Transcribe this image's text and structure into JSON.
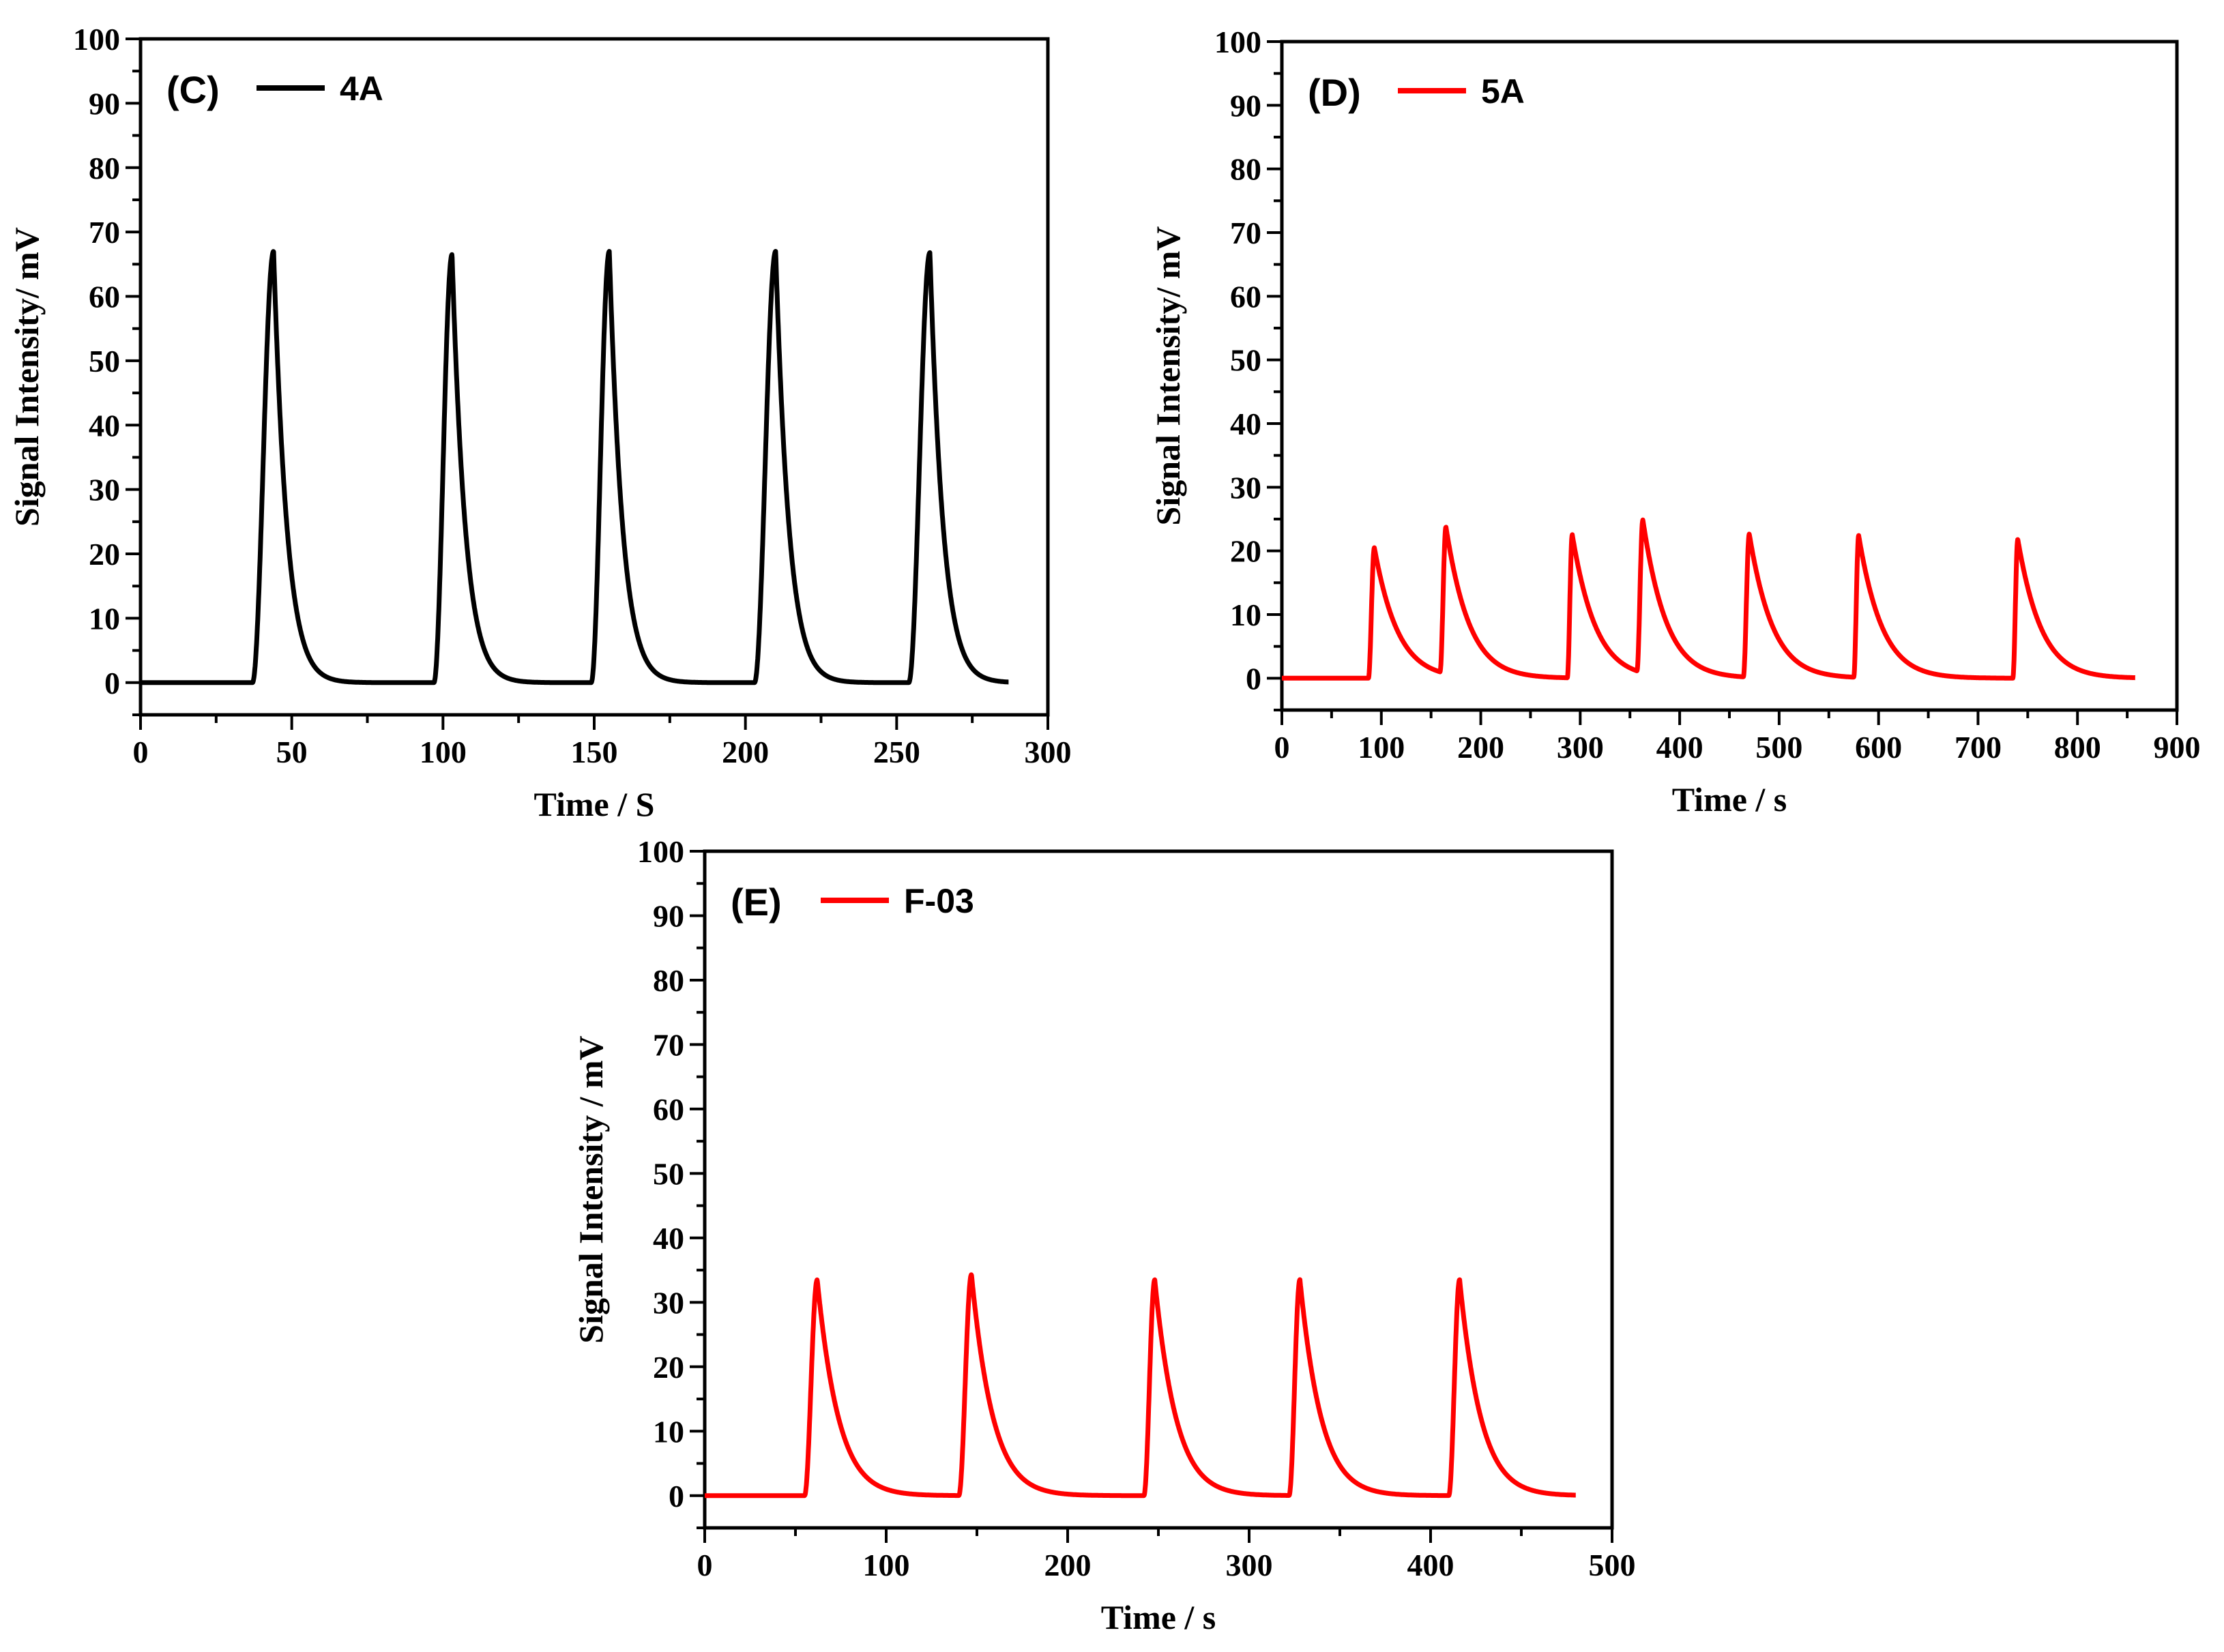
{
  "figure": {
    "panels": [
      "C",
      "D",
      "E"
    ]
  },
  "chart_data": [
    {
      "id": "C",
      "type": "line",
      "panel_label": "(C)",
      "legend": [
        {
          "name": "4A",
          "color": "#000000"
        }
      ],
      "xlabel": "Time / S",
      "ylabel": "Signal Intensity/ mV",
      "xlim": [
        0,
        300
      ],
      "ylim": [
        -5,
        100
      ],
      "xticks": [
        "0",
        "50",
        "100",
        "150",
        "200",
        "250",
        "300"
      ],
      "yticks": [
        "0",
        "10",
        "20",
        "30",
        "40",
        "50",
        "60",
        "70",
        "80",
        "90",
        "100"
      ],
      "series": [
        {
          "name": "4A",
          "color": "#000000",
          "baseline": 0,
          "x_end": 287,
          "peaks": [
            {
              "x": 44,
              "height": 67,
              "start": 37
            },
            {
              "x": 103,
              "height": 66.5,
              "start": 97
            },
            {
              "x": 155,
              "height": 67,
              "start": 149
            },
            {
              "x": 210,
              "height": 67,
              "start": 203
            },
            {
              "x": 261,
              "height": 66.8,
              "start": 254
            }
          ],
          "tau": 3.4
        }
      ]
    },
    {
      "id": "D",
      "type": "line",
      "panel_label": "(D)",
      "legend": [
        {
          "name": "5A",
          "color": "#ff0000"
        }
      ],
      "xlabel": "Time / s",
      "ylabel": "Signal Intensity/ mV",
      "xlim": [
        0,
        900
      ],
      "ylim": [
        -5,
        100
      ],
      "xticks": [
        "0",
        "100",
        "200",
        "300",
        "400",
        "500",
        "600",
        "700",
        "800",
        "900"
      ],
      "yticks": [
        "0",
        "10",
        "20",
        "30",
        "40",
        "50",
        "60",
        "70",
        "80",
        "90",
        "100"
      ],
      "series": [
        {
          "name": "5A",
          "color": "#ff0000",
          "baseline": 0,
          "x_end": 858,
          "peaks": [
            {
              "x": 93,
              "height": 20.5,
              "start": 87
            },
            {
              "x": 165,
              "height": 23,
              "start": 159
            },
            {
              "x": 292,
              "height": 22.5,
              "start": 287
            },
            {
              "x": 363,
              "height": 24,
              "start": 357
            },
            {
              "x": 470,
              "height": 22.5,
              "start": 464
            },
            {
              "x": 580,
              "height": 22.3,
              "start": 575
            },
            {
              "x": 740,
              "height": 21.8,
              "start": 735
            }
          ],
          "tau": 18
        }
      ]
    },
    {
      "id": "E",
      "type": "line",
      "panel_label": "(E)",
      "legend": [
        {
          "name": "F-03",
          "color": "#ff0000"
        }
      ],
      "xlabel": "Time / s",
      "ylabel": "Signal Intensity / mV",
      "xlim": [
        0,
        500
      ],
      "ylim": [
        -5,
        100
      ],
      "xticks": [
        "0",
        "100",
        "200",
        "300",
        "400",
        "500"
      ],
      "yticks": [
        "0",
        "10",
        "20",
        "30",
        "40",
        "50",
        "60",
        "70",
        "80",
        "90",
        "100"
      ],
      "series": [
        {
          "name": "F-03",
          "color": "#ff0000",
          "baseline": 0,
          "x_end": 480,
          "peaks": [
            {
              "x": 62,
              "height": 33.5,
              "start": 55
            },
            {
              "x": 147,
              "height": 34.3,
              "start": 140
            },
            {
              "x": 248,
              "height": 33.5,
              "start": 242
            },
            {
              "x": 328,
              "height": 33.5,
              "start": 322
            },
            {
              "x": 416,
              "height": 33.5,
              "start": 410
            }
          ],
          "tau": 9
        }
      ]
    }
  ]
}
